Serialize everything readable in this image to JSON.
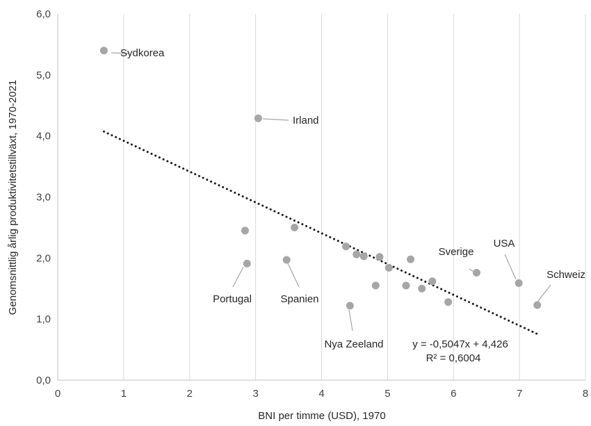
{
  "chart_data": {
    "type": "scatter",
    "xlabel": "BNI per timme (USD), 1970",
    "ylabel": "Genomsnittlig årlig produktivitetstillväxt, 1970-2021",
    "xlim": [
      0,
      8
    ],
    "ylim": [
      0,
      6
    ],
    "x_ticks": [
      "0",
      "1",
      "2",
      "3",
      "4",
      "5",
      "6",
      "7",
      "8"
    ],
    "y_ticks": [
      "0,0",
      "1,0",
      "2,0",
      "3,0",
      "4,0",
      "5,0",
      "6,0"
    ],
    "grid": "vertical",
    "points": [
      {
        "x": 0.7,
        "y": 5.4,
        "label": "Sydkorea"
      },
      {
        "x": 3.04,
        "y": 4.29,
        "label": "Irland"
      },
      {
        "x": 2.84,
        "y": 2.45,
        "label": ""
      },
      {
        "x": 2.87,
        "y": 1.91,
        "label": "Portugal"
      },
      {
        "x": 3.47,
        "y": 1.97,
        "label": "Spanien"
      },
      {
        "x": 3.59,
        "y": 2.5,
        "label": ""
      },
      {
        "x": 4.37,
        "y": 2.19,
        "label": ""
      },
      {
        "x": 4.43,
        "y": 1.22,
        "label": "Nya Zeeland"
      },
      {
        "x": 4.53,
        "y": 2.06,
        "label": ""
      },
      {
        "x": 4.64,
        "y": 2.03,
        "label": ""
      },
      {
        "x": 4.82,
        "y": 1.55,
        "label": ""
      },
      {
        "x": 4.88,
        "y": 2.02,
        "label": ""
      },
      {
        "x": 5.02,
        "y": 1.84,
        "label": ""
      },
      {
        "x": 5.28,
        "y": 1.55,
        "label": ""
      },
      {
        "x": 5.35,
        "y": 1.98,
        "label": ""
      },
      {
        "x": 5.52,
        "y": 1.5,
        "label": ""
      },
      {
        "x": 5.68,
        "y": 1.62,
        "label": ""
      },
      {
        "x": 5.92,
        "y": 1.28,
        "label": ""
      },
      {
        "x": 6.35,
        "y": 1.76,
        "label": "Sverige"
      },
      {
        "x": 6.99,
        "y": 1.59,
        "label": "USA"
      },
      {
        "x": 7.27,
        "y": 1.23,
        "label": "Schweiz"
      }
    ],
    "trendline": {
      "style": "dotted",
      "x_range": [
        0.7,
        7.27
      ],
      "slope": -0.5047,
      "intercept": 4.426,
      "equation": "y = -0,5047x + 4,426",
      "r_squared": "R² = 0,6004"
    },
    "colors": {
      "points": "#a6a6a6",
      "trendline": "#1a1a1a",
      "grid": "#d9d9d9",
      "leader": "#a6a6a6"
    }
  }
}
